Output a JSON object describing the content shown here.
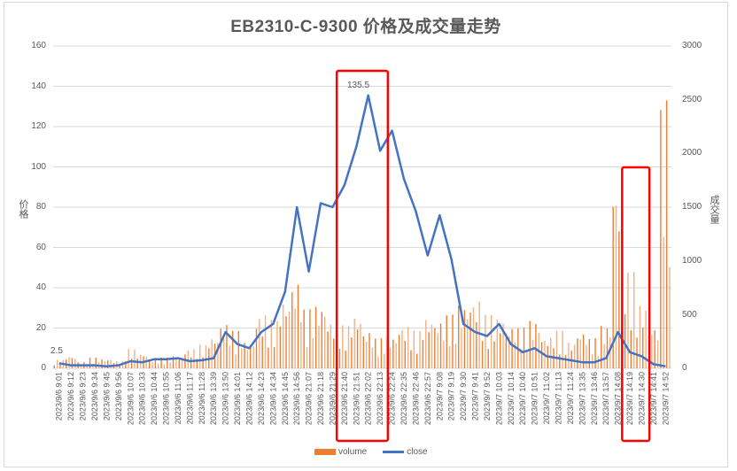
{
  "chart_data": {
    "type": "bar+line",
    "title": "EB2310-C-9300 价格及成交量走势",
    "ylabel": "价格",
    "y2label": "成交量",
    "ylim": [
      0,
      160
    ],
    "y2lim": [
      0,
      3000
    ],
    "yticks": [
      0,
      20,
      40,
      60,
      80,
      100,
      120,
      140,
      160
    ],
    "y2ticks": [
      0,
      500,
      1000,
      1500,
      2000,
      2500,
      3000
    ],
    "grid": true,
    "legend_position": "bottom",
    "legend": [
      "volume",
      "close"
    ],
    "annotations": [
      {
        "text": "2.5",
        "target": "close first point"
      },
      {
        "text": "135.5",
        "target": "close maximum"
      }
    ],
    "highlight_boxes": [
      {
        "from": "2023/9/6 21:40",
        "to": "2023/9/6 22:13",
        "color": "#ff0000"
      },
      {
        "from": "2023/9/7 14:19",
        "to": "2023/9/7 14:30",
        "color": "#ff0000"
      }
    ],
    "categories": [
      "2023/9/6 9:01",
      "2023/9/6 9:12",
      "2023/9/6 9:23",
      "2023/9/6 9:34",
      "2023/9/6 9:45",
      "2023/9/6 9:56",
      "2023/9/6 10:07",
      "2023/9/6 10:33",
      "2023/9/6 10:44",
      "2023/9/6 10:55",
      "2023/9/6 11:06",
      "2023/9/6 11:17",
      "2023/9/6 11:28",
      "2023/9/6 13:39",
      "2023/9/6 13:50",
      "2023/9/6 14:01",
      "2023/9/6 14:12",
      "2023/9/6 14:23",
      "2023/9/6 14:34",
      "2023/9/6 14:45",
      "2023/9/6 14:56",
      "2023/9/6 21:07",
      "2023/9/6 21:18",
      "2023/9/6 21:29",
      "2023/9/6 21:40",
      "2023/9/6 21:51",
      "2023/9/6 22:02",
      "2023/9/6 22:13",
      "2023/9/6 22:24",
      "2023/9/6 22:35",
      "2023/9/6 22:46",
      "2023/9/6 22:57",
      "2023/9/7 9:08",
      "2023/9/7 9:19",
      "2023/9/7 9:30",
      "2023/9/7 9:41",
      "2023/9/7 9:52",
      "2023/9/7 10:03",
      "2023/9/7 10:14",
      "2023/9/7 10:40",
      "2023/9/7 10:51",
      "2023/9/7 11:02",
      "2023/9/7 11:13",
      "2023/9/7 11:24",
      "2023/9/7 13:35",
      "2023/9/7 13:46",
      "2023/9/7 13:57",
      "2023/9/7 14:08",
      "2023/9/7 14:19",
      "2023/9/7 14:30",
      "2023/9/7 14:41",
      "2023/9/7 14:52"
    ],
    "series": [
      {
        "name": "close",
        "type": "line",
        "axis": "left",
        "color": "#4472c4",
        "values": [
          2.5,
          1.5,
          1.5,
          1.5,
          1.0,
          1.5,
          3.5,
          3.0,
          4.5,
          4.5,
          5.0,
          3.5,
          4.0,
          5.0,
          18.0,
          12.0,
          10.0,
          18.0,
          22.0,
          38.0,
          80.0,
          48.0,
          82.0,
          80.0,
          91.0,
          110.0,
          135.5,
          108.0,
          118.0,
          94.0,
          78.0,
          56.0,
          76.0,
          54.0,
          22.0,
          18.0,
          16.0,
          22.0,
          12.0,
          8.0,
          10.0,
          6.0,
          5.0,
          4.0,
          3.0,
          3.0,
          5.0,
          18.0,
          8.0,
          6.0,
          2.0,
          1.0
        ]
      },
      {
        "name": "volume",
        "type": "bar",
        "axis": "right",
        "color": "#ed7d31",
        "values": [
          80,
          120,
          60,
          100,
          90,
          70,
          180,
          140,
          90,
          100,
          120,
          180,
          220,
          300,
          420,
          350,
          250,
          500,
          450,
          650,
          820,
          550,
          600,
          450,
          400,
          500,
          350,
          280,
          300,
          400,
          350,
          480,
          450,
          500,
          600,
          650,
          500,
          480,
          400,
          380,
          450,
          300,
          350,
          250,
          350,
          280,
          400,
          1800,
          900,
          600,
          400,
          2500
        ]
      }
    ]
  },
  "ui": {
    "title": "EB2310-C-9300 价格及成交量走势",
    "left_axis_title": "价格",
    "right_axis_title": "成交量",
    "left_ticks": [
      "160",
      "140",
      "120",
      "100",
      "80",
      "60",
      "40",
      "20",
      "0"
    ],
    "right_ticks": [
      "3000",
      "2500",
      "2000",
      "1500",
      "1000",
      "500",
      "0"
    ],
    "start_label": "2.5",
    "peak_label": "135.5",
    "legend_volume": "volume",
    "legend_close": "close"
  }
}
